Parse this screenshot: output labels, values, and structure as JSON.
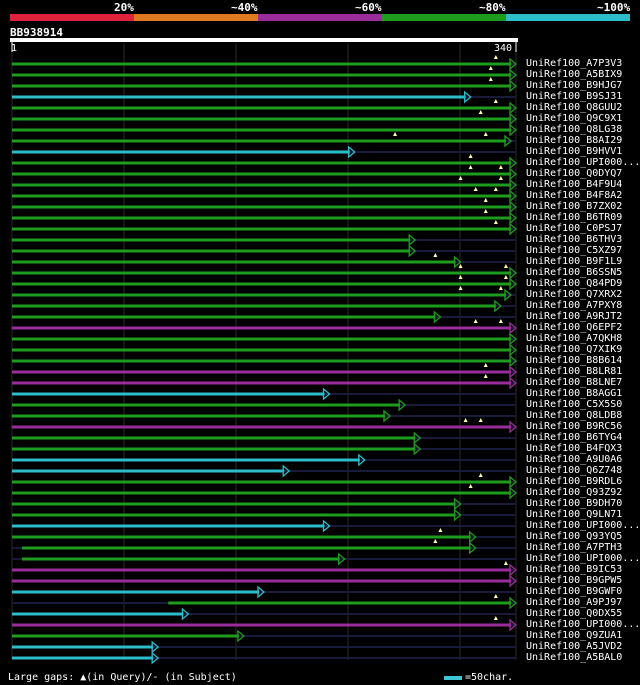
{
  "scale": {
    "labels": [
      "20%",
      "~40%",
      "~60%",
      "~80%",
      "~100%"
    ],
    "colors": [
      "#e0223c",
      "#e07a22",
      "#9b2c9b",
      "#1e9c1e",
      "#2cbccc"
    ]
  },
  "query": {
    "id": "BB938914",
    "start": "1",
    "end": "340"
  },
  "hits": [
    {
      "name": "UniRef100_A7P3V3",
      "band": 3,
      "s": 0,
      "e": 1.0,
      "g": [
        0.96
      ]
    },
    {
      "name": "UniRef100_A5BIX9",
      "band": 3,
      "s": 0,
      "e": 1.0,
      "g": [
        0.95
      ]
    },
    {
      "name": "UniRef100_B9HJG7",
      "band": 3,
      "s": 0,
      "e": 1.0,
      "g": [
        0.95
      ]
    },
    {
      "name": "UniRef100_B9SJ31",
      "band": 4,
      "s": 0,
      "e": 0.91,
      "g": []
    },
    {
      "name": "UniRef100_Q8GUU2",
      "band": 3,
      "s": 0,
      "e": 1.0,
      "g": [
        0.96
      ]
    },
    {
      "name": "UniRef100_Q9C9X1",
      "band": 3,
      "s": 0,
      "e": 1.0,
      "g": [
        0.93
      ]
    },
    {
      "name": "UniRef100_Q8LG38",
      "band": 3,
      "s": 0,
      "e": 1.0,
      "g": []
    },
    {
      "name": "UniRef100_B8AI29",
      "band": 3,
      "s": 0,
      "e": 0.99,
      "g": [
        0.76,
        0.94
      ]
    },
    {
      "name": "UniRef100_B9HVV1",
      "band": 4,
      "s": 0,
      "e": 0.68,
      "g": []
    },
    {
      "name": "UniRef100_UPI000...",
      "band": 3,
      "s": 0,
      "e": 1.0,
      "g": [
        0.91
      ]
    },
    {
      "name": "UniRef100_Q0DYQ7",
      "band": 3,
      "s": 0,
      "e": 1.0,
      "g": [
        0.91,
        0.97
      ]
    },
    {
      "name": "UniRef100_B4F9U4",
      "band": 3,
      "s": 0,
      "e": 1.0,
      "g": [
        0.89,
        0.97
      ]
    },
    {
      "name": "UniRef100_B4F8A2",
      "band": 3,
      "s": 0,
      "e": 1.0,
      "g": [
        0.92,
        0.96
      ]
    },
    {
      "name": "UniRef100_B7ZX02",
      "band": 3,
      "s": 0,
      "e": 1.0,
      "g": [
        0.94
      ]
    },
    {
      "name": "UniRef100_B6TR09",
      "band": 3,
      "s": 0,
      "e": 1.0,
      "g": [
        0.94
      ]
    },
    {
      "name": "UniRef100_C0PSJ7",
      "band": 3,
      "s": 0,
      "e": 1.0,
      "g": [
        0.96
      ]
    },
    {
      "name": "UniRef100_B6THV3",
      "band": 3,
      "s": 0,
      "e": 0.8,
      "g": []
    },
    {
      "name": "UniRef100_C5XZ97",
      "band": 3,
      "s": 0,
      "e": 0.8,
      "g": []
    },
    {
      "name": "UniRef100_B9F1L9",
      "band": 3,
      "s": 0,
      "e": 0.89,
      "g": [
        0.84
      ]
    },
    {
      "name": "UniRef100_B6SSN5",
      "band": 3,
      "s": 0,
      "e": 1.0,
      "g": [
        0.89,
        0.98
      ]
    },
    {
      "name": "UniRef100_Q84PD9",
      "band": 3,
      "s": 0,
      "e": 1.0,
      "g": [
        0.89,
        0.98
      ]
    },
    {
      "name": "UniRef100_Q7XRX2",
      "band": 3,
      "s": 0,
      "e": 0.99,
      "g": [
        0.89,
        0.97
      ]
    },
    {
      "name": "UniRef100_A7PXY8",
      "band": 3,
      "s": 0,
      "e": 0.97,
      "g": []
    },
    {
      "name": "UniRef100_A9RJT2",
      "band": 3,
      "s": 0,
      "e": 0.85,
      "g": []
    },
    {
      "name": "UniRef100_Q6EPF2",
      "band": 2,
      "s": 0,
      "e": 1.0,
      "g": [
        0.92,
        0.97
      ]
    },
    {
      "name": "UniRef100_A7QKH8",
      "band": 3,
      "s": 0,
      "e": 1.0,
      "g": []
    },
    {
      "name": "UniRef100_Q7XIK9",
      "band": 3,
      "s": 0,
      "e": 1.0,
      "g": []
    },
    {
      "name": "UniRef100_B8B614",
      "band": 3,
      "s": 0,
      "e": 1.0,
      "g": []
    },
    {
      "name": "UniRef100_B8LR81",
      "band": 2,
      "s": 0,
      "e": 1.0,
      "g": [
        0.94
      ]
    },
    {
      "name": "UniRef100_B8LNE7",
      "band": 2,
      "s": 0,
      "e": 1.0,
      "g": [
        0.94
      ]
    },
    {
      "name": "UniRef100_B8AGG1",
      "band": 4,
      "s": 0,
      "e": 0.63,
      "g": []
    },
    {
      "name": "UniRef100_C5X5S0",
      "band": 3,
      "s": 0,
      "e": 0.78,
      "g": []
    },
    {
      "name": "UniRef100_Q8LDB8",
      "band": 3,
      "s": 0,
      "e": 0.75,
      "g": []
    },
    {
      "name": "UniRef100_B9RC56",
      "band": 2,
      "s": 0,
      "e": 1.0,
      "g": [
        0.9,
        0.93
      ]
    },
    {
      "name": "UniRef100_B6TYG4",
      "band": 3,
      "s": 0,
      "e": 0.81,
      "g": []
    },
    {
      "name": "UniRef100_B4FQX3",
      "band": 3,
      "s": 0,
      "e": 0.81,
      "g": []
    },
    {
      "name": "UniRef100_A9U0A6",
      "band": 4,
      "s": 0,
      "e": 0.7,
      "g": []
    },
    {
      "name": "UniRef100_Q6Z748",
      "band": 4,
      "s": 0,
      "e": 0.55,
      "g": []
    },
    {
      "name": "UniRef100_B9RDL6",
      "band": 3,
      "s": 0,
      "e": 1.0,
      "g": [
        0.93
      ]
    },
    {
      "name": "UniRef100_Q93Z92",
      "band": 3,
      "s": 0,
      "e": 1.0,
      "g": [
        0.91
      ]
    },
    {
      "name": "UniRef100_B9DH70",
      "band": 3,
      "s": 0,
      "e": 0.89,
      "g": []
    },
    {
      "name": "UniRef100_Q9LN71",
      "band": 3,
      "s": 0,
      "e": 0.89,
      "g": []
    },
    {
      "name": "UniRef100_UPI000...",
      "band": 4,
      "s": 0,
      "e": 0.63,
      "g": []
    },
    {
      "name": "UniRef100_Q93YQ5",
      "band": 3,
      "s": 0,
      "e": 0.92,
      "g": [
        0.85
      ]
    },
    {
      "name": "UniRef100_A7PTH3",
      "band": 3,
      "s": 0.02,
      "e": 0.92,
      "g": [
        0.84
      ]
    },
    {
      "name": "UniRef100_UPI000...",
      "band": 3,
      "s": 0.02,
      "e": 0.66,
      "g": []
    },
    {
      "name": "UniRef100_B9IC53",
      "band": 2,
      "s": 0,
      "e": 1.0,
      "g": [
        0.98
      ]
    },
    {
      "name": "UniRef100_B9GPW5",
      "band": 2,
      "s": 0,
      "e": 1.0,
      "g": []
    },
    {
      "name": "UniRef100_B9GWF0",
      "band": 4,
      "s": 0,
      "e": 0.5,
      "g": []
    },
    {
      "name": "UniRef100_A9PJ97",
      "band": 3,
      "s": 0.31,
      "e": 1.0,
      "g": [
        0.96
      ]
    },
    {
      "name": "UniRef100_Q0DX55",
      "band": 4,
      "s": 0,
      "e": 0.35,
      "g": []
    },
    {
      "name": "UniRef100_UPI000...",
      "band": 2,
      "s": 0,
      "e": 1.0,
      "g": [
        0.96
      ]
    },
    {
      "name": "UniRef100_Q9ZUA1",
      "band": 3,
      "s": 0,
      "e": 0.46,
      "g": []
    },
    {
      "name": "UniRef100_A5JVD2",
      "band": 4,
      "s": 0,
      "e": 0.29,
      "g": []
    },
    {
      "name": "UniRef100_A5BAL0",
      "band": 4,
      "s": 0,
      "e": 0.29,
      "g": []
    }
  ],
  "legend": {
    "text": "Large gaps: ▲(in Query)/- (in Subject)",
    "scale_label": "=50char."
  }
}
